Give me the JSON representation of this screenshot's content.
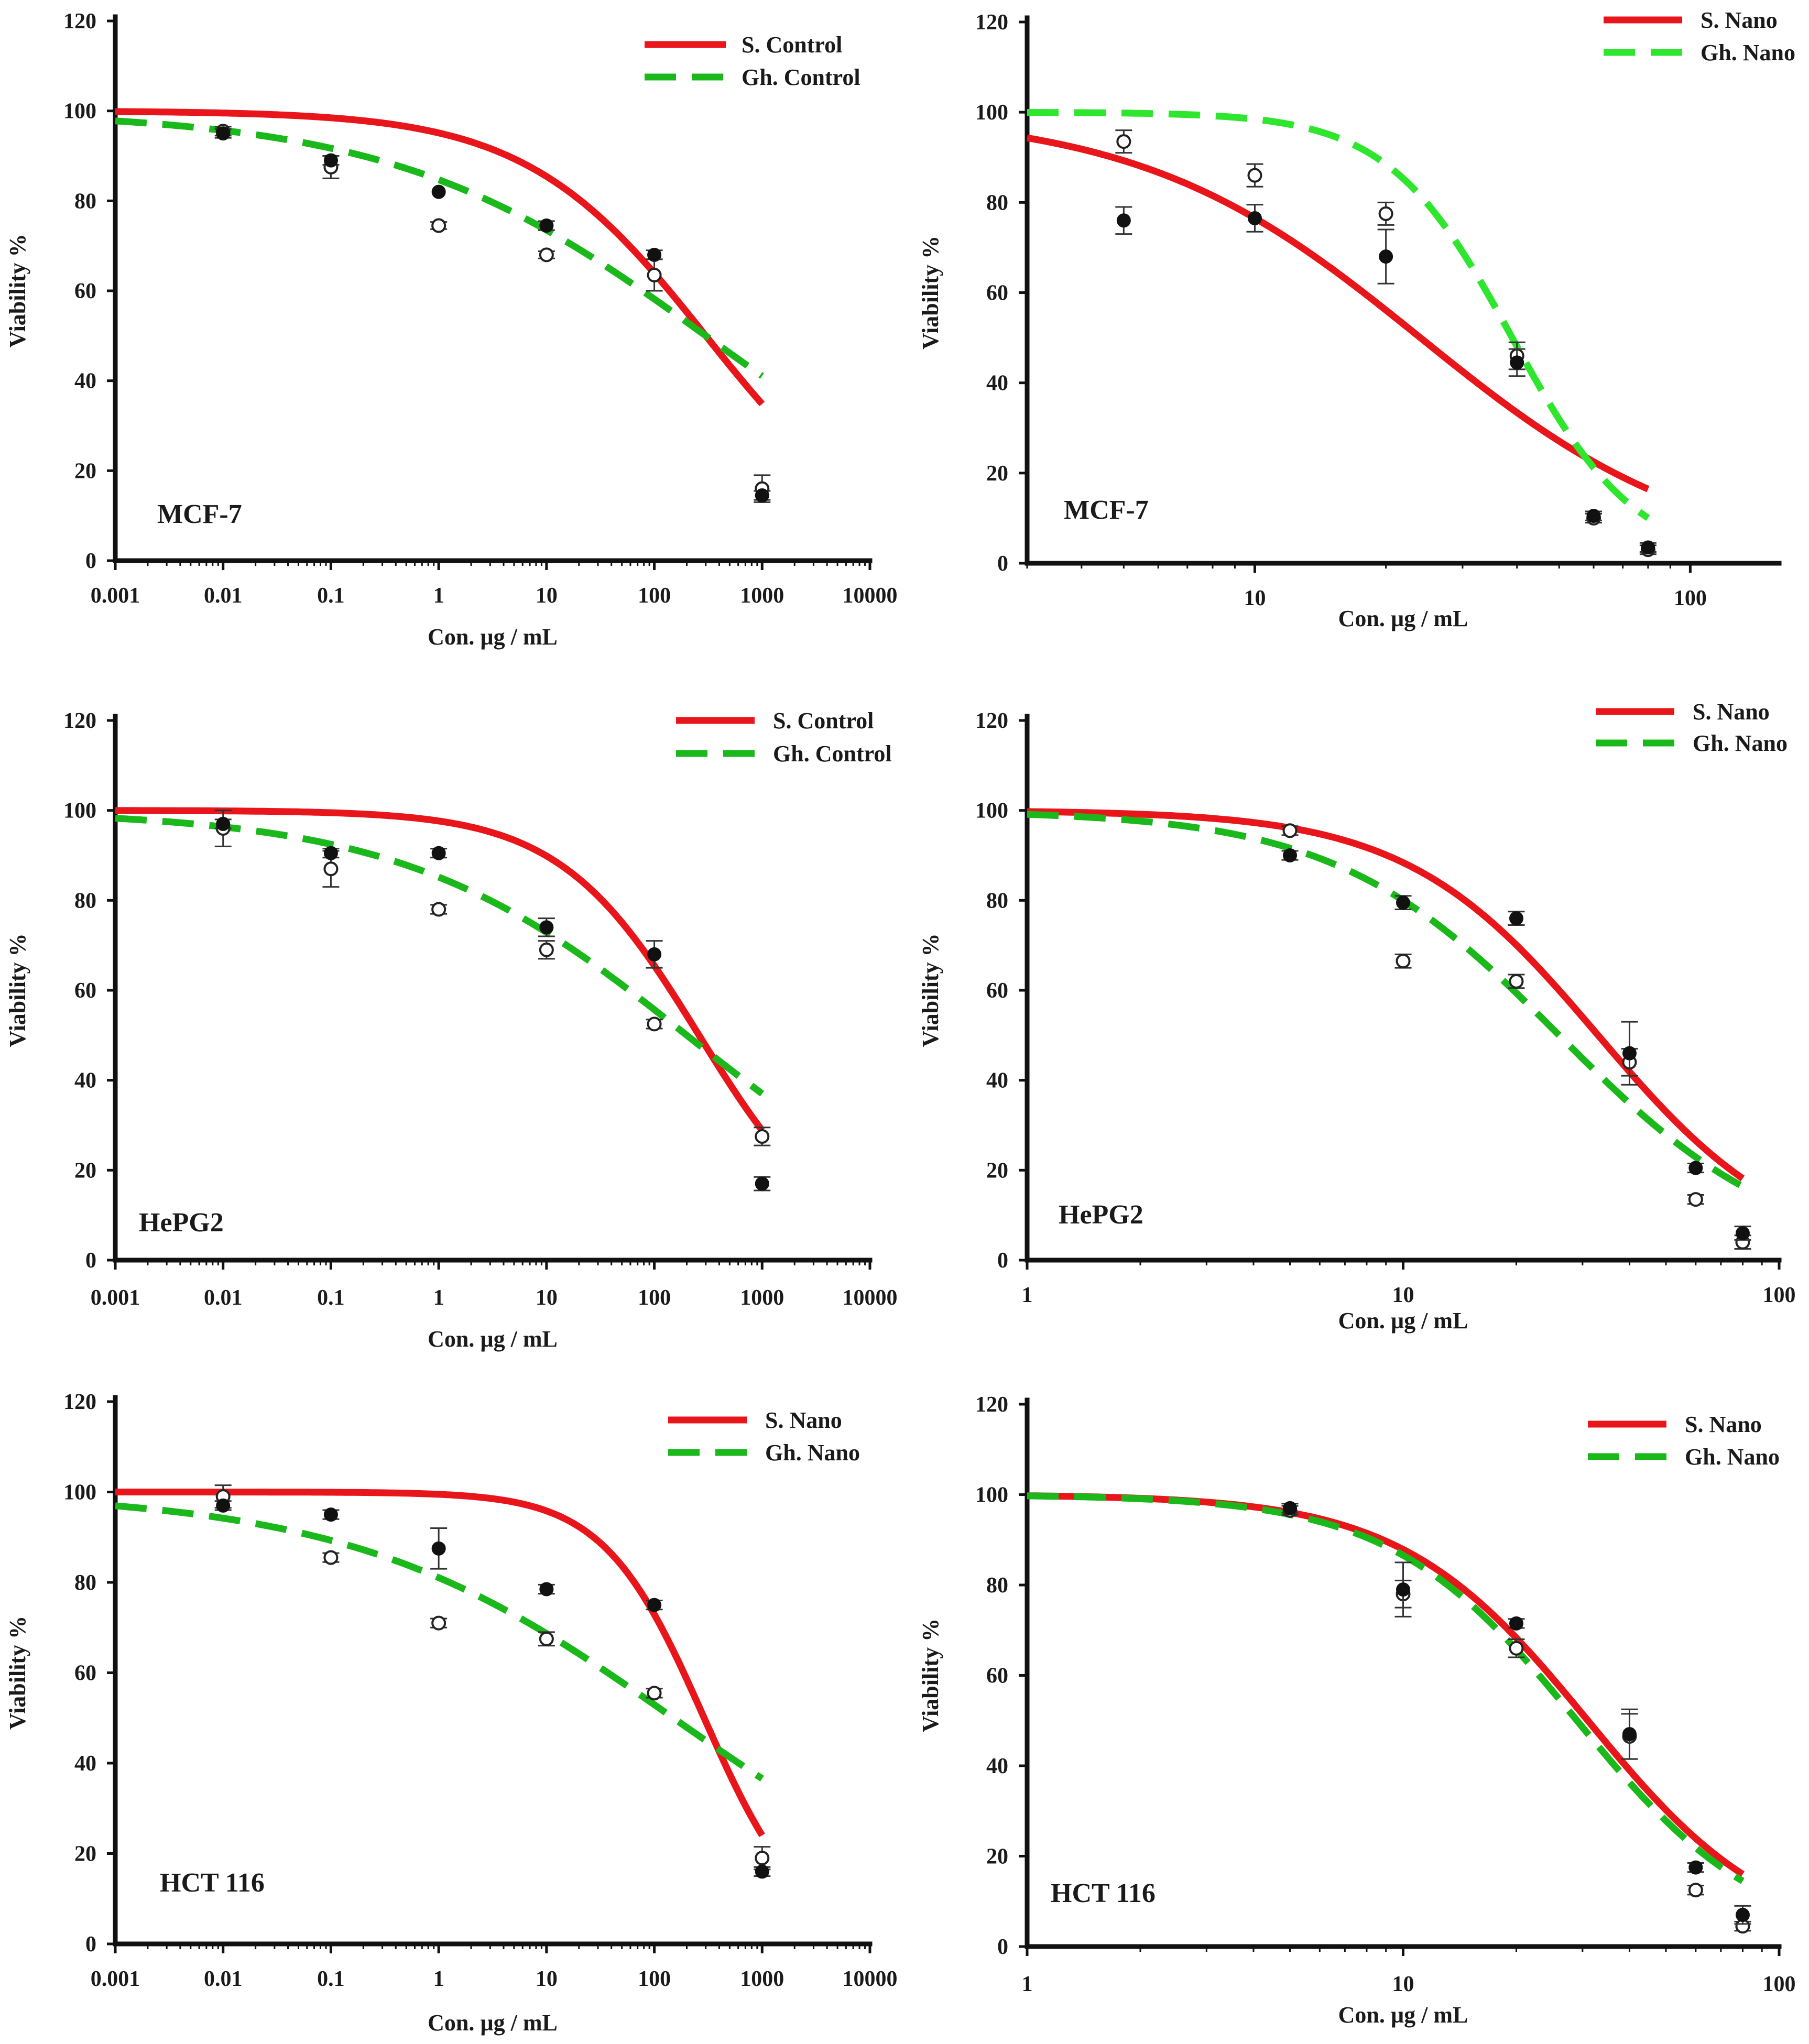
{
  "chart_data": [
    {
      "id": "mcf7-control",
      "type": "line",
      "xscale": "log",
      "xlim": [
        0.001,
        10000
      ],
      "ylim": [
        0,
        120
      ],
      "x_ticks": [
        0.001,
        0.01,
        0.1,
        1,
        10,
        100,
        1000,
        10000
      ],
      "x_tick_labels": [
        "0.001",
        "0.01",
        "0.1",
        "1",
        "10",
        "100",
        "1000",
        "10000"
      ],
      "y_ticks": [
        0,
        20,
        40,
        60,
        80,
        100,
        120
      ],
      "y_tick_labels": [
        "0",
        "20",
        "40",
        "60",
        "80",
        "100",
        "120"
      ],
      "xlabel": "Con. µg / mL",
      "ylabel": "Viability %",
      "cell_line": "MCF-7",
      "legend_position": "top-right",
      "series": [
        {
          "name": "S. Control",
          "style": "solid",
          "color": "#e8151b",
          "ic50": 300,
          "hill": 0.52,
          "x_end": 1000,
          "marker": "filled",
          "points": [
            {
              "x": 0.01,
              "y": 95,
              "err": 1
            },
            {
              "x": 0.1,
              "y": 89,
              "err": 1
            },
            {
              "x": 1,
              "y": 82,
              "err": 0
            },
            {
              "x": 10,
              "y": 74.5,
              "err": 1
            },
            {
              "x": 100,
              "y": 68,
              "err": 1
            },
            {
              "x": 1000,
              "y": 14.5,
              "err": 1
            }
          ]
        },
        {
          "name": "Gh. Control",
          "style": "dashed",
          "color": "#1bb81b",
          "ic50": 300,
          "hill": 0.3,
          "x_end": 1000,
          "marker": "open",
          "points": [
            {
              "x": 0.01,
              "y": 95.5,
              "err": 1
            },
            {
              "x": 0.1,
              "y": 87.5,
              "err": 2.5
            },
            {
              "x": 1,
              "y": 74.5,
              "err": 0.8
            },
            {
              "x": 10,
              "y": 68,
              "err": 0.8
            },
            {
              "x": 100,
              "y": 63.5,
              "err": 3.5
            },
            {
              "x": 1000,
              "y": 16,
              "err": 3
            }
          ]
        }
      ]
    },
    {
      "id": "mcf7-nano",
      "type": "line",
      "xscale": "log",
      "xlim": [
        3,
        160
      ],
      "ylim": [
        0,
        120
      ],
      "x_ticks": [
        10,
        100
      ],
      "x_tick_labels": [
        "10",
        "100"
      ],
      "y_ticks": [
        0,
        20,
        40,
        60,
        80,
        100,
        120
      ],
      "y_tick_labels": [
        "0",
        "20",
        "40",
        "60",
        "80",
        "100",
        "120"
      ],
      "xlabel": "Con. µg / mL",
      "ylabel": "Viability %",
      "cell_line": "MCF-7",
      "legend_position": "top-right",
      "series": [
        {
          "name": "S. Nano",
          "style": "solid",
          "color": "#e8151b",
          "ic50": 24,
          "hill": 1.35,
          "x_end": 80,
          "marker": "filled",
          "points": [
            {
              "x": 5,
              "y": 76,
              "err": 3
            },
            {
              "x": 10,
              "y": 76.5,
              "err": 3
            },
            {
              "x": 20,
              "y": 68,
              "err": 6
            },
            {
              "x": 40,
              "y": 44.5,
              "err": 3
            },
            {
              "x": 60,
              "y": 10.5,
              "err": 1
            },
            {
              "x": 80,
              "y": 3.5,
              "err": 1
            }
          ]
        },
        {
          "name": "Gh. Nano",
          "style": "dashed",
          "color": "#2ee62e",
          "ic50": 39,
          "hill": 3.05,
          "x_end": 80,
          "marker": "open",
          "points": [
            {
              "x": 5,
              "y": 93.5,
              "err": 2.5
            },
            {
              "x": 10,
              "y": 86,
              "err": 2.5
            },
            {
              "x": 20,
              "y": 77.5,
              "err": 2.5
            },
            {
              "x": 40,
              "y": 46,
              "err": 3
            },
            {
              "x": 60,
              "y": 10,
              "err": 1
            },
            {
              "x": 80,
              "y": 3,
              "err": 1
            }
          ]
        }
      ]
    },
    {
      "id": "hepg2-control",
      "type": "line",
      "xscale": "log",
      "xlim": [
        0.001,
        10000
      ],
      "ylim": [
        0,
        120
      ],
      "x_ticks": [
        0.001,
        0.01,
        0.1,
        1,
        10,
        100,
        1000,
        10000
      ],
      "x_tick_labels": [
        "0.001",
        "0.01",
        "0.1",
        "1",
        "10",
        "100",
        "1000",
        "10000"
      ],
      "y_ticks": [
        0,
        20,
        40,
        60,
        80,
        100,
        120
      ],
      "y_tick_labels": [
        "0",
        "20",
        "40",
        "60",
        "80",
        "100",
        "120"
      ],
      "xlabel": "Con. µg / mL",
      "ylabel": "Viability %",
      "cell_line": "HePG2",
      "legend_position": "top-right",
      "series": [
        {
          "name": "S. Control",
          "style": "solid",
          "color": "#e8151b",
          "ic50": 260,
          "hill": 0.67,
          "x_end": 1000,
          "marker": "filled",
          "points": [
            {
              "x": 0.01,
              "y": 97,
              "err": 1
            },
            {
              "x": 0.1,
              "y": 90.5,
              "err": 1
            },
            {
              "x": 1,
              "y": 90.5,
              "err": 1
            },
            {
              "x": 10,
              "y": 74,
              "err": 2
            },
            {
              "x": 100,
              "y": 68,
              "err": 3
            },
            {
              "x": 1000,
              "y": 17,
              "err": 1.5
            }
          ]
        },
        {
          "name": "Gh. Control",
          "style": "dashed",
          "color": "#1bb81b",
          "ic50": 200,
          "hill": 0.33,
          "x_end": 1000,
          "marker": "open",
          "points": [
            {
              "x": 0.01,
              "y": 96,
              "err": 4
            },
            {
              "x": 0.1,
              "y": 87,
              "err": 4
            },
            {
              "x": 1,
              "y": 78,
              "err": 1
            },
            {
              "x": 10,
              "y": 69,
              "err": 2
            },
            {
              "x": 100,
              "y": 52.5,
              "err": 1
            },
            {
              "x": 1000,
              "y": 27.5,
              "err": 2
            }
          ]
        }
      ]
    },
    {
      "id": "hepg2-nano",
      "type": "line",
      "xscale": "log",
      "xlim": [
        1,
        100
      ],
      "ylim": [
        0,
        120
      ],
      "x_ticks": [
        1,
        10,
        100
      ],
      "x_tick_labels": [
        "1",
        "10",
        "100"
      ],
      "y_ticks": [
        0,
        20,
        40,
        60,
        80,
        100,
        120
      ],
      "y_tick_labels": [
        "0",
        "20",
        "40",
        "60",
        "80",
        "100",
        "120"
      ],
      "xlabel": "Con. µg / mL",
      "ylabel": "Viability %",
      "cell_line": "HePG2",
      "legend_position": "top-right",
      "series": [
        {
          "name": "S. Nano",
          "style": "solid",
          "color": "#e8151b",
          "ic50": 33,
          "hill": 1.7,
          "x_end": 80,
          "marker": "filled",
          "points": [
            {
              "x": 5,
              "y": 90,
              "err": 1
            },
            {
              "x": 10,
              "y": 79.5,
              "err": 1.5
            },
            {
              "x": 20,
              "y": 76,
              "err": 1.5
            },
            {
              "x": 40,
              "y": 46,
              "err": 7
            },
            {
              "x": 60,
              "y": 20.5,
              "err": 1
            },
            {
              "x": 80,
              "y": 6,
              "err": 1.5
            }
          ]
        },
        {
          "name": "Gh. Nano",
          "style": "dashed",
          "color": "#1bb81b",
          "ic50": 26,
          "hill": 1.45,
          "x_end": 80,
          "marker": "open",
          "points": [
            {
              "x": 5,
              "y": 95.5,
              "err": 1
            },
            {
              "x": 10,
              "y": 66.5,
              "err": 1.5
            },
            {
              "x": 20,
              "y": 62,
              "err": 1.5
            },
            {
              "x": 40,
              "y": 44,
              "err": 3
            },
            {
              "x": 60,
              "y": 13.5,
              "err": 1
            },
            {
              "x": 80,
              "y": 4,
              "err": 1.5
            }
          ]
        }
      ]
    },
    {
      "id": "hct116-control",
      "type": "line",
      "xscale": "log",
      "xlim": [
        0.001,
        10000
      ],
      "ylim": [
        0,
        120
      ],
      "x_ticks": [
        0.001,
        0.01,
        0.1,
        1,
        10,
        100,
        1000,
        10000
      ],
      "x_tick_labels": [
        "0.001",
        "0.01",
        "0.1",
        "1",
        "10",
        "100",
        "1000",
        "10000"
      ],
      "y_ticks": [
        0,
        20,
        40,
        60,
        80,
        100,
        120
      ],
      "y_tick_labels": [
        "0",
        "20",
        "40",
        "60",
        "80",
        "100",
        "120"
      ],
      "xlabel": "Con. µg / mL",
      "ylabel": "Viability %",
      "cell_line": "HCT 116",
      "legend_position": "top-right",
      "series": [
        {
          "name": "S. Nano",
          "style": "solid",
          "color": "#e8151b",
          "ic50": 290,
          "hill": 0.93,
          "x_end": 1000,
          "marker": "filled",
          "points": [
            {
              "x": 0.01,
              "y": 97,
              "err": 1
            },
            {
              "x": 0.1,
              "y": 95,
              "err": 1
            },
            {
              "x": 1,
              "y": 87.5,
              "err": 4.5
            },
            {
              "x": 10,
              "y": 78.5,
              "err": 1
            },
            {
              "x": 100,
              "y": 75,
              "err": 1
            },
            {
              "x": 1000,
              "y": 16,
              "err": 1
            }
          ]
        },
        {
          "name": "Gh. Nano",
          "style": "dashed",
          "color": "#1bb81b",
          "ic50": 150,
          "hill": 0.29,
          "x_end": 1000,
          "marker": "open",
          "points": [
            {
              "x": 0.01,
              "y": 99,
              "err": 2.5
            },
            {
              "x": 0.1,
              "y": 85.5,
              "err": 1
            },
            {
              "x": 1,
              "y": 71,
              "err": 1
            },
            {
              "x": 10,
              "y": 67.5,
              "err": 1.5
            },
            {
              "x": 100,
              "y": 55.5,
              "err": 1
            },
            {
              "x": 1000,
              "y": 19,
              "err": 2.5
            }
          ]
        }
      ]
    },
    {
      "id": "hct116-nano",
      "type": "line",
      "xscale": "log",
      "xlim": [
        1,
        100
      ],
      "ylim": [
        0,
        120
      ],
      "x_ticks": [
        1,
        10,
        100
      ],
      "x_tick_labels": [
        "1",
        "10",
        "100"
      ],
      "y_ticks": [
        0,
        20,
        40,
        60,
        80,
        100,
        120
      ],
      "y_tick_labels": [
        "0",
        "20",
        "40",
        "60",
        "80",
        "100",
        "120"
      ],
      "xlabel": "Con. µg / mL",
      "ylabel": "Viability %",
      "cell_line": "HCT 116",
      "legend_position": "top-right",
      "series": [
        {
          "name": "S. Nano",
          "style": "solid",
          "color": "#e8151b",
          "ic50": 31,
          "hill": 1.75,
          "x_end": 80,
          "marker": "filled",
          "points": [
            {
              "x": 5,
              "y": 97,
              "err": 1
            },
            {
              "x": 10,
              "y": 79,
              "err": 6
            },
            {
              "x": 20,
              "y": 71.5,
              "err": 1
            },
            {
              "x": 40,
              "y": 47,
              "err": 5.5
            },
            {
              "x": 60,
              "y": 17.5,
              "err": 1
            },
            {
              "x": 80,
              "y": 7,
              "err": 2
            }
          ]
        },
        {
          "name": "Gh. Nano",
          "style": "dashed",
          "color": "#1bb81b",
          "ic50": 29,
          "hill": 1.75,
          "x_end": 80,
          "marker": "open",
          "points": [
            {
              "x": 5,
              "y": 96.5,
              "err": 1
            },
            {
              "x": 10,
              "y": 78,
              "err": 3
            },
            {
              "x": 20,
              "y": 66,
              "err": 2
            },
            {
              "x": 40,
              "y": 46.5,
              "err": 5
            },
            {
              "x": 60,
              "y": 12.5,
              "err": 1
            },
            {
              "x": 80,
              "y": 4.5,
              "err": 1
            }
          ]
        }
      ]
    }
  ]
}
